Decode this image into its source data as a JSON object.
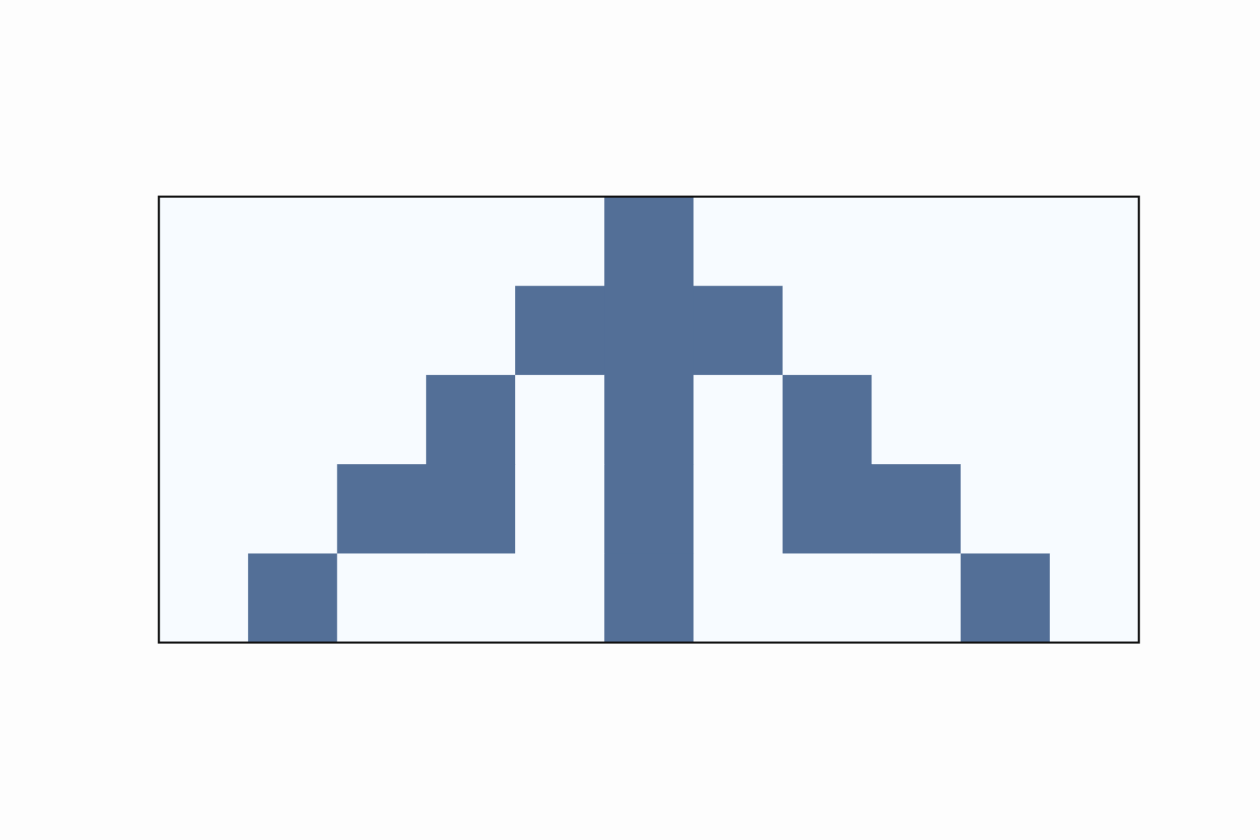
{
  "chart_data": {
    "type": "heatmap",
    "title": "",
    "xlabel": "",
    "ylabel": "",
    "n_rows": 5,
    "n_cols": 11,
    "rows": [
      [
        0,
        0,
        0,
        0,
        0,
        1,
        0,
        0,
        0,
        0,
        0
      ],
      [
        0,
        0,
        0,
        0,
        1,
        1,
        1,
        0,
        0,
        0,
        0
      ],
      [
        0,
        0,
        0,
        1,
        0,
        1,
        0,
        1,
        0,
        0,
        0
      ],
      [
        0,
        0,
        1,
        1,
        0,
        1,
        0,
        1,
        1,
        0,
        0
      ],
      [
        0,
        1,
        0,
        0,
        0,
        1,
        0,
        0,
        0,
        1,
        0
      ]
    ],
    "colormap": {
      "0": "#f7fbff",
      "1": "#536f97"
    },
    "frame_color": "#111111",
    "background": "#fdfdfd",
    "grid": false
  }
}
